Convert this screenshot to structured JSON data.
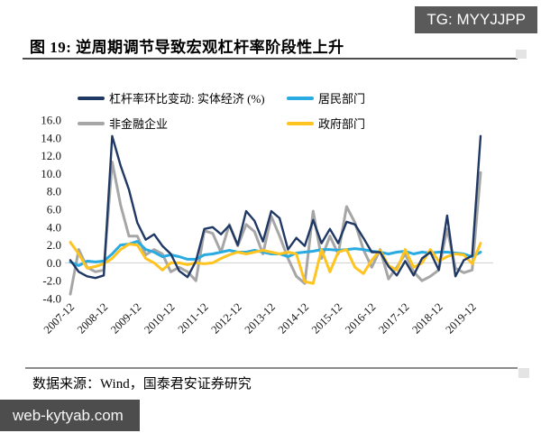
{
  "badge": {
    "text": "TG: MYYJJPP"
  },
  "title": {
    "text": "图 19:  逆周期调节导致宏观杠杆率阶段性上升"
  },
  "source": {
    "text": "数据来源：Wind，国泰君安证券研究"
  },
  "watermark": {
    "text": "web-kytyab.com"
  },
  "chart_data": {
    "type": "line",
    "title": "",
    "xlabel": "",
    "ylabel": "",
    "ylim": [
      -4.0,
      16.0
    ],
    "y_ticks": [
      "16.0",
      "14.0",
      "12.0",
      "10.0",
      "8.0",
      "6.0",
      "4.0",
      "2.0",
      "0.0",
      "-2.0",
      "-4.0"
    ],
    "x_freq": "quarterly",
    "x_start": "2007-12",
    "x_end": "2020-03",
    "x_tick_labels": [
      "2007-12",
      "2008-12",
      "2009-12",
      "2010-12",
      "2011-12",
      "2012-12",
      "2013-12",
      "2014-12",
      "2015-12",
      "2016-12",
      "2017-12",
      "2018-12",
      "2019-12"
    ],
    "grid": "zero-line-only",
    "legend_position": "top",
    "series": [
      {
        "name": "杠杆率环比变动: 实体经济 (%)",
        "key": "real-economy",
        "color": "#1F3864",
        "values": [
          0.3,
          -1.0,
          -1.5,
          -1.7,
          -1.4,
          14.2,
          10.9,
          8.2,
          4.5,
          2.6,
          3.2,
          1.9,
          1.0,
          -0.9,
          -1.6,
          0.2,
          3.8,
          4.0,
          3.2,
          4.2,
          2.0,
          5.8,
          4.7,
          2.4,
          5.8,
          5.0,
          1.5,
          2.8,
          1.9,
          4.8,
          2.2,
          3.8,
          2.2,
          4.6,
          4.3,
          2.8,
          1.2,
          1.2,
          -0.4,
          -1.4,
          0.2,
          -1.4,
          0.5,
          1.2,
          -0.8,
          5.3,
          -1.5,
          0.3,
          0.8,
          14.2
        ]
      },
      {
        "name": "居民部门",
        "key": "households",
        "color": "#29ABE2",
        "values": [
          0.1,
          -0.3,
          0.2,
          0.1,
          0.2,
          1.0,
          2.0,
          2.1,
          2.4,
          1.5,
          1.2,
          0.7,
          0.9,
          0.7,
          0.4,
          0.4,
          0.9,
          1.0,
          1.2,
          1.4,
          1.2,
          1.2,
          1.4,
          1.2,
          1.0,
          1.0,
          0.7,
          1.1,
          1.2,
          1.3,
          1.5,
          1.5,
          1.4,
          1.5,
          1.6,
          1.5,
          1.3,
          1.2,
          1.0,
          1.2,
          1.3,
          1.0,
          1.2,
          1.1,
          1.2,
          1.2,
          1.1,
          1.0,
          0.7,
          1.2
        ]
      },
      {
        "name": "非金融企业",
        "key": "nonfinancial-corporates",
        "color": "#A6A6A6",
        "values": [
          -3.5,
          1.5,
          -0.5,
          -1.0,
          -0.8,
          11.3,
          6.5,
          3.0,
          3.0,
          0.9,
          1.5,
          1.0,
          -1.0,
          -0.5,
          -1.0,
          -2.0,
          3.6,
          3.3,
          1.2,
          4.3,
          1.9,
          4.3,
          3.5,
          1.0,
          5.2,
          3.0,
          0.5,
          -1.5,
          -2.3,
          5.8,
          0.5,
          3.0,
          1.0,
          6.3,
          4.5,
          1.5,
          -0.5,
          1.5,
          -1.8,
          -0.5,
          1.0,
          -1.0,
          -2.0,
          -1.5,
          -0.8,
          3.8,
          -0.6,
          -1.1,
          -0.8,
          10.1
        ]
      },
      {
        "name": "政府部门",
        "key": "government",
        "color": "#FFC420",
        "values": [
          2.3,
          1.0,
          -0.6,
          -0.4,
          -0.1,
          0.5,
          1.5,
          2.1,
          2.0,
          0.5,
          0.0,
          -0.8,
          0.0,
          0.0,
          -0.2,
          0.0,
          -0.1,
          0.0,
          0.5,
          0.9,
          1.2,
          1.0,
          1.2,
          1.4,
          1.2,
          1.0,
          1.2,
          1.0,
          -2.1,
          -2.3,
          1.5,
          -1.0,
          1.2,
          1.5,
          -0.5,
          -1.2,
          0.3,
          1.4,
          -0.3,
          -0.8,
          1.5,
          -0.5,
          0.0,
          1.5,
          0.2,
          0.7,
          1.0,
          0.9,
          -0.1,
          2.2
        ]
      }
    ]
  }
}
